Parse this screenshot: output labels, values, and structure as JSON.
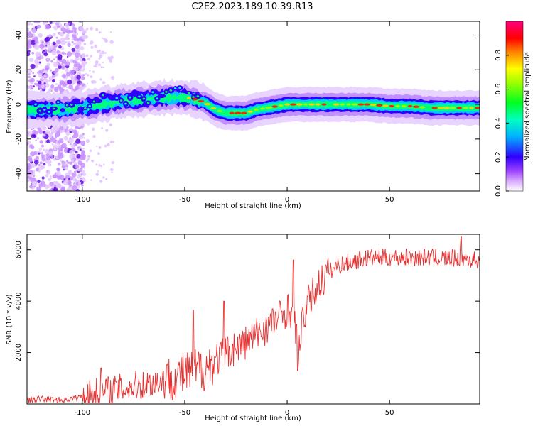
{
  "title": "C2E2.2023.189.10.39.R13",
  "colors": {
    "snr_line": "#e83030",
    "colorbar": [
      "#ffffff",
      "#c070ff",
      "#3000ff",
      "#00ccff",
      "#00ff40",
      "#ffff00",
      "#ff8000",
      "#ff0000",
      "#ff0080"
    ]
  },
  "chart_data": [
    {
      "type": "heatmap",
      "name": "spectrogram",
      "xlabel": "Height of straight line (km)",
      "ylabel": "Frequency (Hz)",
      "xlim": [
        -127,
        94
      ],
      "ylim": [
        -50,
        48
      ],
      "xticks": [
        -100,
        -50,
        0,
        50
      ],
      "xtick_labels": [
        "-100",
        "-50",
        "0",
        "50"
      ],
      "yticks": [
        -40,
        -20,
        0,
        20,
        40
      ],
      "ytick_labels": [
        "-40",
        "-20",
        "0",
        "20",
        "40"
      ],
      "ridge_x": [
        -127,
        -120,
        -110,
        -100,
        -90,
        -80,
        -70,
        -60,
        -50,
        -45,
        -40,
        -35,
        -30,
        -25,
        -20,
        -15,
        -10,
        -5,
        0,
        5,
        10,
        20,
        30,
        40,
        50,
        60,
        70,
        80,
        94
      ],
      "ridge_freq": [
        -3,
        -3,
        -3,
        -2,
        0,
        2,
        3,
        4,
        4,
        3,
        1,
        -3,
        -5,
        -5,
        -5,
        -3,
        -2,
        -1,
        0,
        0,
        0,
        0,
        0,
        0,
        -1,
        -1,
        -2,
        -2,
        -2
      ],
      "colorbar": {
        "label": "Normalized spectral amplitude",
        "range": [
          0,
          1
        ],
        "ticks": [
          0.0,
          0.2,
          0.4,
          0.6,
          0.8
        ],
        "tick_labels": [
          "0.0",
          "0.2",
          "0.4",
          "0.6",
          "0.8"
        ]
      }
    },
    {
      "type": "line",
      "name": "snr",
      "xlabel": "Height of straight line (km)",
      "ylabel": "SNR (10 * v/v)",
      "xlim": [
        -127,
        94
      ],
      "ylim": [
        0,
        6600
      ],
      "xticks": [
        -100,
        -50,
        0,
        50
      ],
      "xtick_labels": [
        "-100",
        "-50",
        "0",
        "50"
      ],
      "yticks": [
        2000,
        4000,
        6000
      ],
      "ytick_labels": [
        "2000",
        "4000",
        "6000"
      ],
      "x": [
        -127,
        -120,
        -110,
        -105,
        -100,
        -95,
        -90,
        -85,
        -80,
        -75,
        -70,
        -65,
        -60,
        -55,
        -50,
        -45,
        -40,
        -35,
        -30,
        -25,
        -20,
        -15,
        -10,
        -5,
        -2,
        0,
        2,
        4,
        6,
        8,
        10,
        15,
        20,
        25,
        30,
        35,
        40,
        50,
        60,
        70,
        80,
        85,
        90,
        94
      ],
      "y": [
        150,
        200,
        150,
        200,
        300,
        400,
        500,
        550,
        600,
        700,
        750,
        850,
        950,
        1050,
        1150,
        1300,
        1400,
        1700,
        2000,
        2200,
        2400,
        2700,
        3000,
        3300,
        3500,
        3700,
        3600,
        3000,
        2200,
        3400,
        3900,
        4600,
        5100,
        5400,
        5500,
        5600,
        5700,
        5700,
        5700,
        5700,
        5650,
        5700,
        5600,
        5600
      ],
      "spikes": [
        {
          "x": -91,
          "y": 1400
        },
        {
          "x": -46,
          "y": 3650
        },
        {
          "x": -31,
          "y": 4000
        },
        {
          "x": 3,
          "y": 5600
        },
        {
          "x": 5,
          "y": 1300
        },
        {
          "x": 85,
          "y": 6500
        }
      ],
      "noise": [
        {
          "x0": -127,
          "x1": -100,
          "amp": 120
        },
        {
          "x0": -100,
          "x1": -60,
          "amp": 600
        },
        {
          "x0": -60,
          "x1": -35,
          "amp": 900
        },
        {
          "x0": -35,
          "x1": -10,
          "amp": 700
        },
        {
          "x0": -10,
          "x1": 20,
          "amp": 700
        },
        {
          "x0": 20,
          "x1": 94,
          "amp": 350
        }
      ]
    }
  ]
}
